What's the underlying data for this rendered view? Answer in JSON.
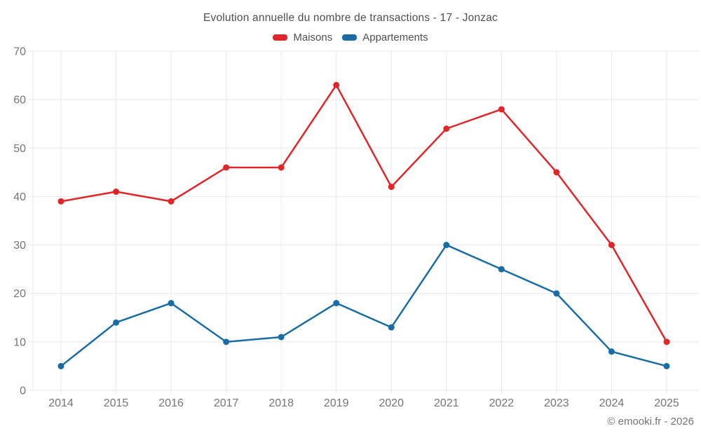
{
  "title": "Evolution annuelle du nombre de transactions - 17 - Jonzac",
  "footer": "© emooki.fr - 2026",
  "colors": {
    "maisons": "#e02629",
    "appartements": "#1a6ca4",
    "grid": "#e8e8e8",
    "axis_label": "#757575",
    "title_text": "#4f4f4f"
  },
  "chart_data": {
    "type": "line",
    "title": "Evolution annuelle du nombre de transactions - 17 - Jonzac",
    "categories": [
      "2014",
      "2015",
      "2016",
      "2017",
      "2018",
      "2019",
      "2020",
      "2021",
      "2022",
      "2023",
      "2024",
      "2025"
    ],
    "series": [
      {
        "name": "Maisons",
        "color": "#e02629",
        "values": [
          39,
          41,
          39,
          46,
          46,
          63,
          42,
          54,
          58,
          45,
          30,
          10
        ]
      },
      {
        "name": "Appartements",
        "color": "#1a6ca4",
        "values": [
          5,
          14,
          18,
          10,
          11,
          18,
          13,
          30,
          25,
          20,
          8,
          5
        ]
      }
    ],
    "xlabel": "",
    "ylabel": "",
    "ylim": [
      0,
      70
    ],
    "ytick_step": 10,
    "grid": true,
    "legend_position": "top",
    "marker": "circle"
  }
}
